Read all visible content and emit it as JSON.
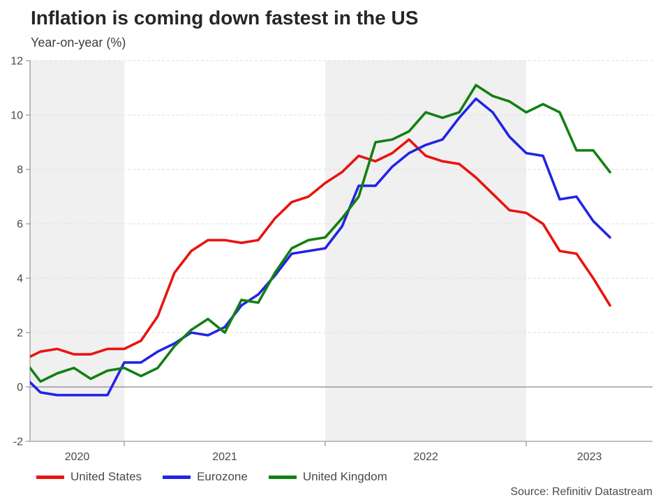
{
  "title": "Inflation is coming down fastest in the US",
  "subtitle": "Year-on-year (%)",
  "source": "Source: Refinitiv Datastream",
  "colors": {
    "united_states": "#e81410",
    "eurozone": "#2323e6",
    "united_kingdom": "#128012",
    "band": "#f0f0f0",
    "grid": "#dedede",
    "zero_line": "#878787",
    "axis": "#9c9c9c",
    "tick_text": "#4a4a4a"
  },
  "chart_data": {
    "type": "line",
    "title": "Inflation is coming down fastest in the US",
    "ylabel": "Year-on-year (%)",
    "xlabel": "",
    "ylim": [
      -2,
      12
    ],
    "yticks": [
      -2,
      0,
      2,
      4,
      6,
      8,
      10,
      12
    ],
    "grid": "horizontal-dashed, solid zero baseline",
    "legend_position": "bottom",
    "x_year_labels": [
      "2020",
      "2021",
      "2022",
      "2023"
    ],
    "year_ticks": [
      "2021-01",
      "2022-01",
      "2023-01"
    ],
    "shaded_bands": [
      [
        "2020-07",
        "2021-01"
      ],
      [
        "2022-01",
        "2023-01"
      ]
    ],
    "categories": [
      "2020-07",
      "2020-08",
      "2020-09",
      "2020-10",
      "2020-11",
      "2020-12",
      "2021-01",
      "2021-02",
      "2021-03",
      "2021-04",
      "2021-05",
      "2021-06",
      "2021-07",
      "2021-08",
      "2021-09",
      "2021-10",
      "2021-11",
      "2021-12",
      "2022-01",
      "2022-02",
      "2022-03",
      "2022-04",
      "2022-05",
      "2022-06",
      "2022-07",
      "2022-08",
      "2022-09",
      "2022-10",
      "2022-11",
      "2022-12",
      "2023-01",
      "2023-02",
      "2023-03",
      "2023-04",
      "2023-05",
      "2023-06"
    ],
    "series": [
      {
        "name": "United States",
        "color": "#e81410",
        "values": [
          1.0,
          1.3,
          1.4,
          1.2,
          1.2,
          1.4,
          1.4,
          1.7,
          2.6,
          4.2,
          5.0,
          5.4,
          5.4,
          5.3,
          5.4,
          6.2,
          6.8,
          7.0,
          7.5,
          7.9,
          8.5,
          8.3,
          8.6,
          9.1,
          8.5,
          8.3,
          8.2,
          7.7,
          7.1,
          6.5,
          6.4,
          6.0,
          5.0,
          4.9,
          4.0,
          3.0
        ]
      },
      {
        "name": "Eurozone",
        "color": "#2323e6",
        "values": [
          0.4,
          -0.2,
          -0.3,
          -0.3,
          -0.3,
          -0.3,
          0.9,
          0.9,
          1.3,
          1.6,
          2.0,
          1.9,
          2.2,
          3.0,
          3.4,
          4.1,
          4.9,
          5.0,
          5.1,
          5.9,
          7.4,
          7.4,
          8.1,
          8.6,
          8.9,
          9.1,
          9.9,
          10.6,
          10.1,
          9.2,
          8.6,
          8.5,
          6.9,
          7.0,
          6.1,
          5.5
        ]
      },
      {
        "name": "United Kingdom",
        "color": "#128012",
        "values": [
          1.0,
          0.2,
          0.5,
          0.7,
          0.3,
          0.6,
          0.7,
          0.4,
          0.7,
          1.5,
          2.1,
          2.5,
          2.0,
          3.2,
          3.1,
          4.2,
          5.1,
          5.4,
          5.5,
          6.2,
          7.0,
          9.0,
          9.1,
          9.4,
          10.1,
          9.9,
          10.1,
          11.1,
          10.7,
          10.5,
          10.1,
          10.4,
          10.1,
          8.7,
          8.7,
          7.9
        ]
      }
    ]
  }
}
